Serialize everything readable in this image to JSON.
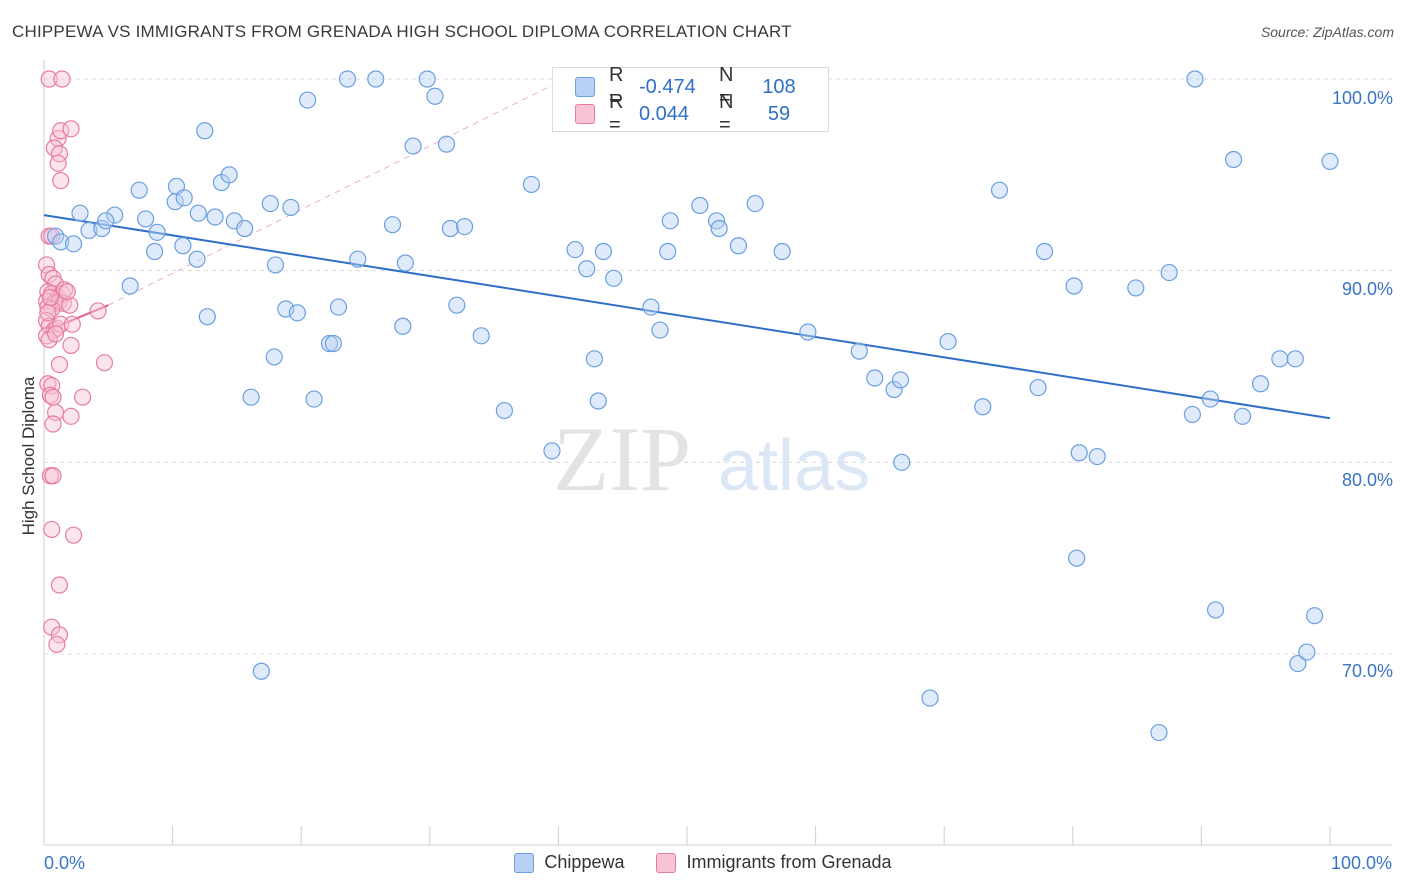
{
  "title": "CHIPPEWA VS IMMIGRANTS FROM GRENADA HIGH SCHOOL DIPLOMA CORRELATION CHART",
  "source": "Source: ZipAtlas.com",
  "watermark": {
    "zip": "ZIP",
    "atlas": "atlas"
  },
  "legend": {
    "rows": [
      {
        "r_label": "R =",
        "r_value": "-0.474",
        "n_label": "N =",
        "n_value": "108",
        "color": "#6a9fe0",
        "fill": "#b7d0f3"
      },
      {
        "r_label": "R =",
        "r_value": "0.044",
        "n_label": "N =",
        "n_value": "59",
        "color": "#e87ba0",
        "fill": "#f7c3d5"
      }
    ]
  },
  "bottom_legend": [
    "Chippewa",
    "Immigrants from Grenada"
  ],
  "colors": {
    "blue": "#6a9fe0",
    "blue_fill": "#b7d0f3",
    "blue_line": "#2f6fc8",
    "pink": "#e87ba0",
    "pink_fill": "#f7c3d5",
    "pink_line": "#e0608e",
    "grid": "#d9d9d9",
    "axis_text": "#3a74c4"
  },
  "chart_data": {
    "type": "scatter",
    "title": "CHIPPEWA VS IMMIGRANTS FROM GRENADA HIGH SCHOOL DIPLOMA CORRELATION CHART",
    "xlabel": "",
    "ylabel": "High School Diploma",
    "xlim": [
      0,
      100
    ],
    "ylim": [
      60,
      100
    ],
    "x_tick_labels": [
      "0.0%",
      "100.0%"
    ],
    "y_ticks": [
      70,
      80,
      90,
      100
    ],
    "y_tick_labels": [
      "70.0%",
      "80.0%",
      "90.0%",
      "100.0%"
    ],
    "series": [
      {
        "name": "Chippewa",
        "R": -0.474,
        "N": 108,
        "trend": {
          "x": [
            0,
            100
          ],
          "y": [
            92.9,
            82.3
          ]
        },
        "points": [
          [
            0.9,
            91.8
          ],
          [
            1.3,
            91.5
          ],
          [
            2.3,
            91.4
          ],
          [
            2.8,
            93.0
          ],
          [
            3.5,
            92.1
          ],
          [
            4.5,
            92.2
          ],
          [
            5.5,
            92.9
          ],
          [
            4.8,
            92.6
          ],
          [
            6.7,
            89.2
          ],
          [
            7.4,
            94.2
          ],
          [
            7.9,
            92.7
          ],
          [
            8.6,
            91.0
          ],
          [
            8.8,
            92.0
          ],
          [
            10.2,
            93.6
          ],
          [
            10.3,
            94.4
          ],
          [
            10.8,
            91.3
          ],
          [
            10.9,
            93.8
          ],
          [
            11.9,
            90.6
          ],
          [
            12.0,
            93.0
          ],
          [
            12.5,
            97.3
          ],
          [
            12.7,
            87.6
          ],
          [
            13.3,
            92.8
          ],
          [
            13.8,
            94.6
          ],
          [
            14.4,
            95.0
          ],
          [
            14.8,
            92.6
          ],
          [
            15.6,
            92.2
          ],
          [
            16.1,
            83.4
          ],
          [
            16.9,
            69.1
          ],
          [
            17.6,
            93.5
          ],
          [
            17.9,
            85.5
          ],
          [
            18.0,
            90.3
          ],
          [
            18.8,
            88.0
          ],
          [
            19.2,
            93.3
          ],
          [
            19.7,
            87.8
          ],
          [
            20.5,
            98.9
          ],
          [
            21.0,
            83.3
          ],
          [
            22.2,
            86.2
          ],
          [
            22.5,
            86.2
          ],
          [
            22.9,
            88.1
          ],
          [
            23.6,
            100.0
          ],
          [
            24.4,
            90.6
          ],
          [
            25.8,
            100.0
          ],
          [
            27.1,
            92.4
          ],
          [
            27.9,
            87.1
          ],
          [
            28.1,
            90.4
          ],
          [
            28.7,
            96.5
          ],
          [
            29.8,
            100.0
          ],
          [
            30.4,
            99.1
          ],
          [
            31.3,
            96.6
          ],
          [
            31.6,
            92.2
          ],
          [
            32.1,
            88.2
          ],
          [
            32.7,
            92.3
          ],
          [
            34.0,
            86.6
          ],
          [
            35.8,
            82.7
          ],
          [
            37.9,
            94.5
          ],
          [
            39.5,
            80.6
          ],
          [
            41.3,
            91.1
          ],
          [
            42.2,
            90.1
          ],
          [
            42.8,
            85.4
          ],
          [
            43.1,
            83.2
          ],
          [
            43.5,
            91.0
          ],
          [
            44.3,
            89.6
          ],
          [
            47.2,
            88.1
          ],
          [
            47.9,
            86.9
          ],
          [
            48.5,
            91.0
          ],
          [
            48.7,
            92.6
          ],
          [
            51.0,
            93.4
          ],
          [
            52.3,
            92.6
          ],
          [
            52.5,
            92.2
          ],
          [
            54.0,
            91.3
          ],
          [
            55.3,
            93.5
          ],
          [
            57.4,
            91.0
          ],
          [
            59.4,
            86.8
          ],
          [
            63.4,
            85.8
          ],
          [
            64.6,
            84.4
          ],
          [
            66.1,
            83.8
          ],
          [
            66.6,
            84.3
          ],
          [
            66.7,
            80.0
          ],
          [
            68.9,
            67.7
          ],
          [
            70.3,
            86.3
          ],
          [
            73.0,
            82.9
          ],
          [
            74.3,
            94.2
          ],
          [
            77.3,
            83.9
          ],
          [
            77.8,
            91.0
          ],
          [
            80.1,
            89.2
          ],
          [
            80.3,
            75.0
          ],
          [
            80.5,
            80.5
          ],
          [
            81.9,
            80.3
          ],
          [
            84.9,
            89.1
          ],
          [
            86.7,
            65.9
          ],
          [
            87.5,
            89.9
          ],
          [
            89.3,
            82.5
          ],
          [
            89.5,
            100.0
          ],
          [
            90.7,
            83.3
          ],
          [
            91.1,
            72.3
          ],
          [
            92.5,
            95.8
          ],
          [
            93.2,
            82.4
          ],
          [
            94.6,
            84.1
          ],
          [
            96.1,
            85.4
          ],
          [
            97.3,
            85.4
          ],
          [
            97.5,
            69.5
          ],
          [
            98.2,
            70.1
          ],
          [
            98.8,
            72.0
          ],
          [
            100.0,
            95.7
          ]
        ]
      },
      {
        "name": "Immigrants from Grenada",
        "R": 0.044,
        "N": 59,
        "trend": {
          "x": [
            0,
            5
          ],
          "y": [
            86.8,
            88.2
          ]
        },
        "points": [
          [
            0.4,
            100.0
          ],
          [
            1.4,
            100.0
          ],
          [
            1.1,
            96.9
          ],
          [
            1.3,
            97.3
          ],
          [
            2.1,
            97.4
          ],
          [
            0.8,
            96.4
          ],
          [
            1.2,
            96.1
          ],
          [
            1.1,
            95.6
          ],
          [
            1.3,
            94.7
          ],
          [
            0.4,
            91.8
          ],
          [
            0.6,
            91.8
          ],
          [
            0.2,
            90.3
          ],
          [
            0.4,
            89.8
          ],
          [
            0.7,
            89.6
          ],
          [
            0.9,
            89.3
          ],
          [
            0.3,
            88.9
          ],
          [
            0.6,
            88.8
          ],
          [
            1.1,
            88.6
          ],
          [
            1.4,
            88.8
          ],
          [
            0.2,
            88.4
          ],
          [
            0.8,
            88.3
          ],
          [
            1.2,
            88.4
          ],
          [
            1.5,
            88.3
          ],
          [
            0.3,
            88.1
          ],
          [
            0.6,
            88.0
          ],
          [
            2.0,
            88.2
          ],
          [
            4.2,
            87.9
          ],
          [
            0.2,
            87.4
          ],
          [
            0.4,
            87.1
          ],
          [
            0.8,
            86.9
          ],
          [
            1.0,
            87.0
          ],
          [
            1.3,
            87.2
          ],
          [
            2.2,
            87.2
          ],
          [
            0.2,
            86.6
          ],
          [
            0.4,
            86.4
          ],
          [
            2.1,
            86.1
          ],
          [
            0.3,
            84.1
          ],
          [
            0.6,
            84.0
          ],
          [
            1.2,
            85.1
          ],
          [
            4.7,
            85.2
          ],
          [
            0.5,
            83.5
          ],
          [
            0.7,
            83.4
          ],
          [
            3.0,
            83.4
          ],
          [
            0.9,
            82.6
          ],
          [
            0.7,
            82.0
          ],
          [
            2.1,
            82.4
          ],
          [
            0.5,
            79.3
          ],
          [
            0.7,
            79.3
          ],
          [
            0.6,
            76.5
          ],
          [
            2.3,
            76.2
          ],
          [
            1.2,
            73.6
          ],
          [
            0.6,
            71.4
          ],
          [
            1.2,
            71.0
          ],
          [
            1.0,
            70.5
          ],
          [
            0.5,
            88.6
          ],
          [
            1.6,
            89.0
          ],
          [
            0.3,
            87.8
          ],
          [
            1.8,
            88.9
          ],
          [
            0.9,
            86.7
          ]
        ]
      }
    ]
  }
}
